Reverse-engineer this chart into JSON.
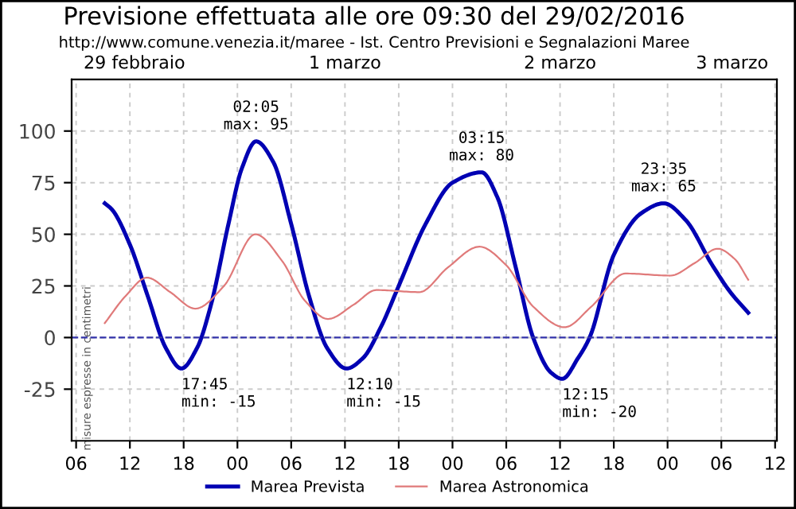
{
  "chart_data": {
    "type": "line",
    "title": "Previsione effettuata alle ore 09:30 del 29/02/2016",
    "subtitle": "http://www.comune.venezia.it/maree - Ist. Centro Previsioni e Segnalazioni Maree",
    "ylabel": "misure espresse in centimetri",
    "series": [
      {
        "name": "Marea Prevista",
        "color": "#0000b3",
        "x": [
          9.2,
          10,
          12,
          14,
          16,
          17.75,
          19.5,
          21,
          23,
          24.5,
          26.08,
          28,
          30,
          32,
          34,
          36.17,
          38,
          40,
          42,
          45,
          48,
          51.25,
          53,
          55,
          57,
          59,
          60.25,
          62,
          63.3,
          66,
          69,
          71.58,
          74,
          77,
          79,
          81
        ],
        "values": [
          65,
          62,
          45,
          20,
          -5,
          -15,
          -5,
          15,
          55,
          82,
          95,
          85,
          55,
          20,
          -5,
          -15,
          -10,
          5,
          25,
          55,
          75,
          80,
          68,
          35,
          0,
          -17,
          -20,
          -10,
          0,
          40,
          60,
          65,
          57,
          35,
          22,
          12
        ]
      },
      {
        "name": "Marea Astronomica",
        "color": "#e07a7a",
        "x": [
          9.2,
          11.5,
          13.9,
          16.5,
          19.3,
          22.5,
          26,
          29,
          31.5,
          34.1,
          37,
          39.5,
          44.3,
          47.5,
          51,
          54,
          57,
          60.5,
          63.5,
          67.3,
          72.3,
          75,
          77.6,
          79.5,
          81
        ],
        "values": [
          7,
          20,
          29,
          22,
          14,
          25,
          50,
          37,
          18,
          9,
          16,
          23,
          22,
          34,
          44,
          35,
          15,
          5,
          15,
          31,
          30,
          36,
          43,
          38,
          28
        ]
      }
    ],
    "annotations": [
      {
        "text": "17:45\nmin: -15",
        "x": 17.75,
        "y": -15
      },
      {
        "text": "02:05\nmax: 95",
        "x": 26.08,
        "y": 95
      },
      {
        "text": "12:10\nmin: -15",
        "x": 36.17,
        "y": -15
      },
      {
        "text": "03:15\nmax: 80",
        "x": 51.25,
        "y": 80
      },
      {
        "text": "12:15\nmin: -20",
        "x": 60.25,
        "y": -20
      },
      {
        "text": "23:35\nmax: 65",
        "x": 71.58,
        "y": 65
      },
      "29 febbraio",
      "1 marzo",
      "2 marzo",
      "3 marzo"
    ],
    "xlim": [
      5.5,
      84.2
    ],
    "xticks": [
      {
        "value": 6,
        "label": "06"
      },
      {
        "value": 12,
        "label": "12"
      },
      {
        "value": 18,
        "label": "18"
      },
      {
        "value": 24,
        "label": "00"
      },
      {
        "value": 30,
        "label": "06"
      },
      {
        "value": 36,
        "label": "12"
      },
      {
        "value": 42,
        "label": "18"
      },
      {
        "value": 48,
        "label": "00"
      },
      {
        "value": 54,
        "label": "06"
      },
      {
        "value": 60,
        "label": "12"
      },
      {
        "value": 66,
        "label": "18"
      },
      {
        "value": 72,
        "label": "00"
      },
      {
        "value": 78,
        "label": "06"
      },
      {
        "value": 84,
        "label": "12"
      }
    ],
    "ylim": [
      -50,
      125
    ],
    "yticks": [
      -25,
      0,
      25,
      50,
      75,
      100
    ],
    "ref_lines": [
      {
        "axis": "y",
        "value": 0,
        "color": "#3333aa",
        "line_style": "dashed"
      }
    ],
    "grid": true,
    "legend": "bottom",
    "marker": "none",
    "line_style": "solid"
  }
}
